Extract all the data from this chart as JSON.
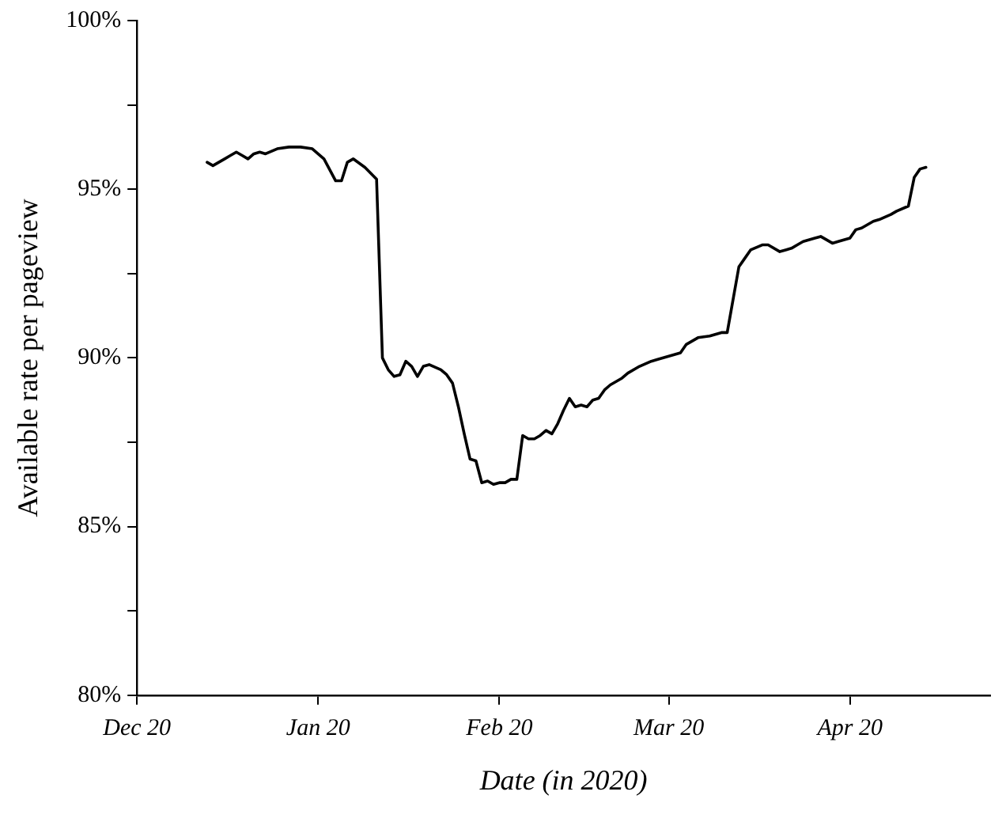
{
  "chart_data": {
    "type": "line",
    "xlabel": "Date (in 2020)",
    "ylabel": "Available rate per pageview",
    "x": [
      "2020-01-01",
      "2020-01-02",
      "2020-01-03",
      "2020-01-04",
      "2020-01-05",
      "2020-01-06",
      "2020-01-07",
      "2020-01-08",
      "2020-01-09",
      "2020-01-10",
      "2020-01-11",
      "2020-01-13",
      "2020-01-15",
      "2020-01-17",
      "2020-01-19",
      "2020-01-21",
      "2020-01-23",
      "2020-01-24",
      "2020-01-25",
      "2020-01-26",
      "2020-01-28",
      "2020-01-30",
      "2020-01-31",
      "2020-02-01",
      "2020-02-02",
      "2020-02-03",
      "2020-02-04",
      "2020-02-05",
      "2020-02-06",
      "2020-02-07",
      "2020-02-08",
      "2020-02-10",
      "2020-02-11",
      "2020-02-12",
      "2020-02-13",
      "2020-02-14",
      "2020-02-15",
      "2020-02-16",
      "2020-02-17",
      "2020-02-18",
      "2020-02-19",
      "2020-02-20",
      "2020-02-21",
      "2020-02-22",
      "2020-02-23",
      "2020-02-24",
      "2020-02-25",
      "2020-02-26",
      "2020-02-27",
      "2020-02-28",
      "2020-02-29",
      "2020-03-01",
      "2020-03-02",
      "2020-03-03",
      "2020-03-04",
      "2020-03-05",
      "2020-03-06",
      "2020-03-07",
      "2020-03-08",
      "2020-03-09",
      "2020-03-10",
      "2020-03-12",
      "2020-03-13",
      "2020-03-15",
      "2020-03-17",
      "2020-03-18",
      "2020-03-20",
      "2020-03-22",
      "2020-03-23",
      "2020-03-25",
      "2020-03-27",
      "2020-03-29",
      "2020-03-30",
      "2020-04-01",
      "2020-04-02",
      "2020-04-03",
      "2020-04-05",
      "2020-04-06",
      "2020-04-08",
      "2020-04-09",
      "2020-04-10",
      "2020-04-11",
      "2020-04-12",
      "2020-04-14",
      "2020-04-15",
      "2020-04-16",
      "2020-04-17",
      "2020-04-18",
      "2020-04-20",
      "2020-04-21",
      "2020-04-22",
      "2020-04-23",
      "2020-04-24",
      "2020-04-25",
      "2020-04-27",
      "2020-04-28",
      "2020-04-30",
      "2020-05-01",
      "2020-05-02",
      "2020-05-03"
    ],
    "series": [
      {
        "color": "#000000",
        "values": [
          95.8,
          95.7,
          95.8,
          95.9,
          96.0,
          96.1,
          96.0,
          95.9,
          96.05,
          96.1,
          96.05,
          96.2,
          96.25,
          96.25,
          96.2,
          95.9,
          95.25,
          95.25,
          95.8,
          95.9,
          95.65,
          95.3,
          90.0,
          89.65,
          89.45,
          89.5,
          89.9,
          89.75,
          89.45,
          89.75,
          89.8,
          89.65,
          89.5,
          89.25,
          88.55,
          87.75,
          87.0,
          86.95,
          86.3,
          86.35,
          86.25,
          86.3,
          86.3,
          86.4,
          86.4,
          87.7,
          87.6,
          87.6,
          87.7,
          87.85,
          87.75,
          88.05,
          88.45,
          88.8,
          88.55,
          88.6,
          88.55,
          88.75,
          88.8,
          89.05,
          89.2,
          89.4,
          89.55,
          89.75,
          89.9,
          89.95,
          90.05,
          90.15,
          90.4,
          90.6,
          90.65,
          90.75,
          90.75,
          92.7,
          92.95,
          93.2,
          93.35,
          93.35,
          93.15,
          93.2,
          93.25,
          93.35,
          93.45,
          93.55,
          93.6,
          93.5,
          93.4,
          93.45,
          93.55,
          93.8,
          93.85,
          93.95,
          94.05,
          94.1,
          94.25,
          94.35,
          94.5,
          95.35,
          95.6,
          95.65
        ]
      }
    ],
    "xlim": [
      "2019-12-20",
      "2020-05-14"
    ],
    "xticks": [
      {
        "value": "2019-12-20",
        "label": "Dec 20"
      },
      {
        "value": "2020-01-20",
        "label": "Jan 20"
      },
      {
        "value": "2020-02-20",
        "label": "Feb 20"
      },
      {
        "value": "2020-03-20",
        "label": "Mar 20"
      },
      {
        "value": "2020-04-20",
        "label": "Apr 20"
      }
    ],
    "ylim": [
      80,
      100
    ],
    "yticks": [
      {
        "value": 80,
        "label": "80%"
      },
      {
        "value": 82.5,
        "label": null
      },
      {
        "value": 85,
        "label": "85%"
      },
      {
        "value": 87.5,
        "label": null
      },
      {
        "value": 90,
        "label": "90%"
      },
      {
        "value": 92.5,
        "label": null
      },
      {
        "value": 95,
        "label": "95%"
      },
      {
        "value": 97.5,
        "label": null
      },
      {
        "value": 100,
        "label": "100%"
      }
    ],
    "grid": false,
    "legend": false,
    "marker": "none",
    "line_style": "solid"
  }
}
